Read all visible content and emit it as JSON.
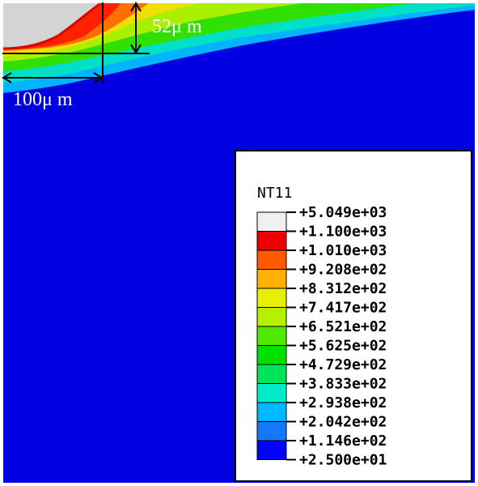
{
  "annotations": {
    "depth_label": "52μ m",
    "width_label": "100μ m"
  },
  "legend": {
    "title": "NT11",
    "ticks": [
      "+5.049e+03",
      "+1.100e+03",
      "+1.010e+03",
      "+9.208e+02",
      "+8.312e+02",
      "+7.417e+02",
      "+6.521e+02",
      "+5.625e+02",
      "+4.729e+02",
      "+3.833e+02",
      "+2.938e+02",
      "+2.042e+02",
      "+1.146e+02",
      "+2.500e+01"
    ],
    "band_colors": [
      "#f0f0f0",
      "#ee0000",
      "#ff5a00",
      "#ffb000",
      "#e8f000",
      "#b4f000",
      "#50ea00",
      "#00e000",
      "#00e45a",
      "#00ecc8",
      "#00b8ff",
      "#1478ff",
      "#0000ff"
    ]
  },
  "field_colors": {
    "background": "#0000e0",
    "ablated": "#d4d4d4",
    "rim": "#e00000"
  }
}
